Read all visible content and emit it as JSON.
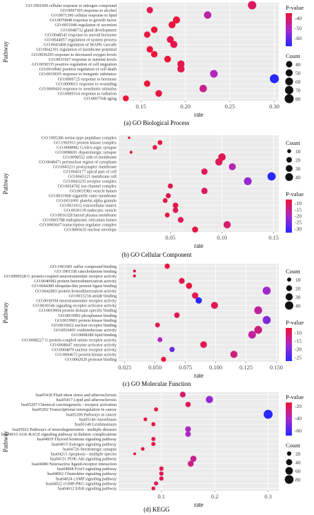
{
  "chart_data": [
    {
      "type": "scatter",
      "caption": "(a) GO Biological Process",
      "ylabel": "Pathway",
      "xlabel": "rate",
      "xlim": [
        0.125,
        0.305
      ],
      "xticks": [
        0.15,
        0.2,
        0.25,
        0.3
      ],
      "xtick_labels": [
        "0.15",
        "0.20",
        "0.25",
        "0.30"
      ],
      "grid": true,
      "color_legend": {
        "title": "P-value",
        "ticks": [
          -40,
          -50,
          -60
        ],
        "min": -68,
        "max": -35
      },
      "size_legend": {
        "title": "Count",
        "values": [
          40,
          50,
          60,
          70,
          80
        ]
      },
      "categories": [
        "GO:1901699 cellular response to nitrogen compound",
        "GO:0097305 response to alcohol",
        "GO:0071396 cellular response to lipid",
        "GO:0070848 response to growth factor",
        "GO:0051046 regulation of secretion",
        "GO:0048732 gland development",
        "GO:0048545 response to steroid hormone",
        "GO:0044057 regulation of system process",
        "GO:0043408 regulation of MAPK cascade",
        "GO:0042391 regulation of membrane potential",
        "GO:0036293 response to decreased oxygen levels",
        "GO:0031667 response to nutrient levels",
        "GO:0030335 positive regulation of cell migration",
        "GO:0010942 positive regulation of cell death",
        "GO:0010035 response to inorganic substance",
        "GO:0009725 response to hormone",
        "GO:0009611 response to wounding",
        "GO:0009410 response to xenobiotic stimulus",
        "GO:0009314 response to radiation",
        "GO:0007568 aging"
      ],
      "x": [
        0.275,
        0.16,
        0.225,
        0.19,
        0.185,
        0.165,
        0.157,
        0.183,
        0.187,
        0.16,
        0.165,
        0.18,
        0.195,
        0.195,
        0.232,
        0.3,
        0.157,
        0.22,
        0.17,
        0.133
      ],
      "count": [
        70,
        40,
        55,
        50,
        48,
        42,
        40,
        48,
        50,
        42,
        42,
        45,
        52,
        52,
        58,
        80,
        40,
        55,
        45,
        35
      ],
      "pvalue": [
        -40,
        -38,
        -48,
        -36,
        -36,
        -36,
        -37,
        -37,
        -38,
        -36,
        -36,
        -36,
        -38,
        -38,
        -50,
        -68,
        -36,
        -45,
        -37,
        -36
      ]
    },
    {
      "type": "scatter",
      "caption": "(b) GO Cellular Component",
      "ylabel": "Pathway",
      "xlabel": "rate",
      "xlim": [
        0.0,
        0.155
      ],
      "xticks": [
        0.05,
        0.1,
        0.15
      ],
      "xtick_labels": [
        "0.05",
        "0.10",
        "0.15"
      ],
      "grid": true,
      "color_legend": {
        "title": "P-value",
        "ticks": [
          -10,
          -15,
          -20,
          -25,
          -30
        ],
        "min": -33,
        "max": -7
      },
      "size_legend": {
        "title": "Count",
        "values": [
          10,
          20,
          30,
          40
        ]
      },
      "categories": [
        "GO:1905286 serine-type peptidase complex",
        "GO:1902911 protein kinase complex",
        "GO:0098982 GABA-ergic synapse",
        "GO:0098691 dopaminergic synapse",
        "GO:0098552 side of membrane",
        "GO:0048471 perinuclear region of cytoplasm",
        "GO:0045211 postsynaptic membrane",
        "GO:0045177 apical part of cell",
        "GO:0045121 membrane raft",
        "GO:0043235 receptor complex",
        "GO:0034702 ion channel complex",
        "GO:0031983 vesicle lumen",
        "GO:0031968 organelle outer membrane",
        "GO:0031091 platelet alpha granule",
        "GO:0031012 extracellular matrix",
        "GO:0030139 endocytic vesicle",
        "GO:0016328 lateral plasma membrane",
        "GO:0005788 endoplasmic reticulum lumen",
        "GO:0005667 transcription regulator complex",
        "GO:0005635 nuclear envelope"
      ],
      "x": [
        0.01,
        0.04,
        0.035,
        0.012,
        0.1,
        0.097,
        0.11,
        0.083,
        0.148,
        0.125,
        0.05,
        0.083,
        0.048,
        0.045,
        0.055,
        0.055,
        0.047,
        0.06,
        0.105,
        0.074
      ],
      "count": [
        4,
        15,
        14,
        6,
        36,
        34,
        32,
        26,
        45,
        40,
        17,
        26,
        17,
        15,
        20,
        20,
        15,
        22,
        34,
        24
      ],
      "pvalue": [
        -8,
        -9,
        -9,
        -8,
        -10,
        -10,
        -18,
        -10,
        -33,
        -22,
        -9,
        -11,
        -9,
        -9,
        -9,
        -10,
        -8,
        -10,
        -12,
        -9
      ]
    },
    {
      "type": "scatter",
      "caption": "(c) GO Molecular Function",
      "ylabel": "Pathway",
      "xlabel": "rate",
      "xlim": [
        0.02,
        0.152
      ],
      "xticks": [
        0.025,
        0.05,
        0.075,
        0.1,
        0.125,
        0.15
      ],
      "xtick_labels": [
        "0.025",
        "0.050",
        "0.075",
        "0.100",
        "0.125",
        "0.150"
      ],
      "grid": true,
      "color_legend": {
        "title": "P-value",
        "ticks": [
          -10,
          -15,
          -20,
          -25
        ],
        "min": -27,
        "max": -7
      },
      "size_legend": {
        "title": "Count",
        "values": [
          10,
          20,
          30,
          40
        ]
      },
      "categories": [
        "GO:1901681 sulfur compound binding",
        "GO:1901338 catecholamine binding",
        "GO:0099528 G protein-coupled neurotransmitter receptor activity",
        "GO:0046982 protein heterodimerization activity",
        "GO:0044389 ubiquitin-like protein ligase binding",
        "GO:0042803 protein homodimerization activity",
        "GO:0033218 amide binding",
        "GO:0030594 neurotransmitter receptor activity",
        "GO:0030546 signaling receptor activator activity",
        "GO:0019904 protein domain specific binding",
        "GO:0019902 phosphatase binding",
        "GO:0019901 protein kinase binding",
        "GO:0016922 nuclear receptor binding",
        "GO:0016491 oxidoreductase activity",
        "GO:0008289 lipid binding",
        "GO:0008227 G protein-coupled amine receptor activity",
        "GO:0008047 enzyme activator activity",
        "GO:0004879 nuclear receptor activity",
        "GO:0004672 protein kinase activity",
        "GO:0002020 protease binding"
      ],
      "x": [
        0.06,
        0.033,
        0.033,
        0.072,
        0.078,
        0.142,
        0.083,
        0.086,
        0.099,
        0.135,
        0.068,
        0.142,
        0.052,
        0.135,
        0.13,
        0.054,
        0.09,
        0.064,
        0.115,
        0.057
      ],
      "count": [
        16,
        5,
        5,
        20,
        22,
        38,
        24,
        24,
        28,
        36,
        18,
        38,
        14,
        36,
        34,
        14,
        26,
        16,
        30,
        15
      ],
      "pvalue": [
        -8,
        -8,
        -8,
        -9,
        -8,
        -18,
        -9,
        -27,
        -9,
        -14,
        -9,
        -20,
        -9,
        -12,
        -14,
        -16,
        -9,
        -22,
        -12,
        -8
      ]
    },
    {
      "type": "scatter",
      "caption": "(d) KEGG",
      "ylabel": "Pathway",
      "xlabel": "rate",
      "xlim": [
        0.02,
        0.32
      ],
      "xticks": [
        0.1,
        0.2,
        0.3
      ],
      "xtick_labels": [
        "0.1",
        "0.2",
        "0.3"
      ],
      "grid": true,
      "color_legend": {
        "title": "P-value",
        "ticks": [
          -20,
          -40,
          -60
        ],
        "min": -68,
        "max": -14
      },
      "size_legend": {
        "title": "Count",
        "values": [
          20,
          40,
          60,
          80
        ]
      },
      "categories": [
        "hsa05418 Fluid shear stress and atherosclerosis",
        "hsa05417 Lipid and atherosclerosis",
        "hsa05207 Chemical carcinogenesis - receptor activation",
        "hsa05202 Transcriptional misregulation in cancer",
        "hsa05200 Pathways in cancer",
        "hsa05146 Amoebiasis",
        "hsa05140 Leishmaniasis",
        "hsa05022 Pathways of neurodegeneration - multiple diseases",
        "hsa04933 AGE-RAGE signaling pathway in diabetic complications",
        "hsa04919 Thyroid hormone signaling pathway",
        "hsa04915 Estrogen signaling pathway",
        "hsa04726 Serotonergic synapse",
        "hsa04215 Apoptosis - multiple species",
        "hsa04151 PI3K-Akt signaling pathway",
        "hsa04080 Neuroactive ligand-receptor interaction",
        "hsa04068 FoxO signaling pathway",
        "hsa04062 Chemokine signaling pathway",
        "hsa04024 cAMP signaling pathway",
        "hsa04022 cGMP-PKG signaling pathway",
        "hsa04012 ErbB signaling pathway"
      ],
      "x": [
        0.14,
        0.19,
        0.15,
        0.09,
        0.3,
        0.07,
        0.085,
        0.15,
        0.15,
        0.085,
        0.085,
        0.065,
        0.05,
        0.16,
        0.155,
        0.1,
        0.1,
        0.1,
        0.09,
        0.085
      ],
      "count": [
        35,
        55,
        30,
        18,
        85,
        15,
        18,
        35,
        32,
        18,
        18,
        14,
        8,
        40,
        38,
        20,
        20,
        20,
        18,
        16
      ],
      "pvalue": [
        -25,
        -45,
        -20,
        -18,
        -68,
        -18,
        -18,
        -40,
        -40,
        -18,
        -18,
        -18,
        -16,
        -30,
        -28,
        -20,
        -20,
        -20,
        -20,
        -18
      ]
    }
  ]
}
